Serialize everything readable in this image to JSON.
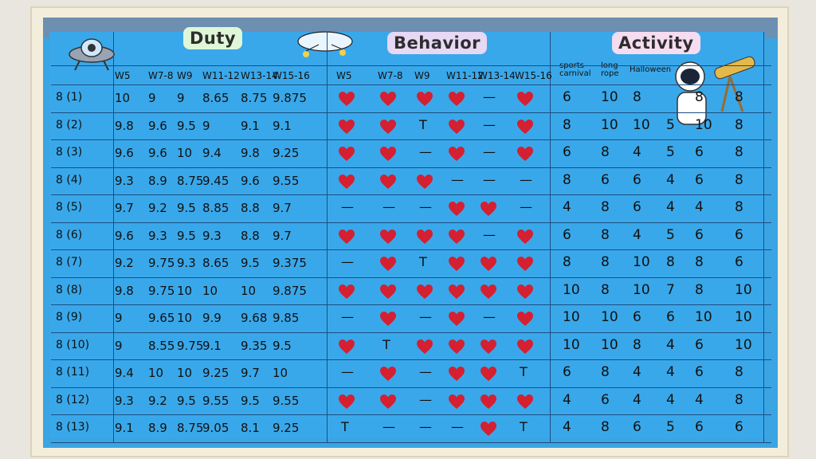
{
  "board": {
    "titles": {
      "duty": "Duty",
      "behavior": "Behavior",
      "activity": "Activity"
    },
    "weeks": [
      "W5",
      "W7-8",
      "W9",
      "W11-12",
      "W13-14",
      "W15-16"
    ],
    "behavior_weeks": [
      "W5",
      "W7-8",
      "W9",
      "W11-12",
      "W13-14",
      "W15-16"
    ],
    "activity_headers": [
      "sports carnival",
      "long rope",
      "Halloween"
    ],
    "classes": [
      "8 (1)",
      "8 (2)",
      "8 (3)",
      "8 (4)",
      "8 (5)",
      "8 (6)",
      "8 (7)",
      "8 (8)",
      "8 (9)",
      "8 (10)",
      "8 (11)",
      "8 (12)",
      "8 (13)"
    ],
    "duty": [
      [
        "10",
        "9",
        "9",
        "8.65",
        "8.75",
        "9.875"
      ],
      [
        "9.8",
        "9.6",
        "9.5",
        "9",
        "9.1",
        "9.1"
      ],
      [
        "9.6",
        "9.6",
        "10",
        "9.4",
        "9.8",
        "9.25"
      ],
      [
        "9.3",
        "8.9",
        "8.75",
        "9.45",
        "9.6",
        "9.55"
      ],
      [
        "9.7",
        "9.2",
        "9.5",
        "8.85",
        "8.8",
        "9.7"
      ],
      [
        "9.6",
        "9.3",
        "9.5",
        "9.3",
        "8.8",
        "9.7"
      ],
      [
        "9.2",
        "9.75",
        "9.3",
        "8.65",
        "9.5",
        "9.375"
      ],
      [
        "9.8",
        "9.75",
        "10",
        "10",
        "10",
        "9.875"
      ],
      [
        "9",
        "9.65",
        "10",
        "9.9",
        "9.68",
        "9.85"
      ],
      [
        "9",
        "8.55",
        "9.75",
        "9.1",
        "9.35",
        "9.5"
      ],
      [
        "9.4",
        "10",
        "10",
        "9.25",
        "9.7",
        "10"
      ],
      [
        "9.3",
        "9.2",
        "9.5",
        "9.55",
        "9.5",
        "9.55"
      ],
      [
        "9.1",
        "8.9",
        "8.75",
        "9.05",
        "8.1",
        "9.25"
      ]
    ],
    "behavior": [
      [
        "heart",
        "heart",
        "heart",
        "heart",
        "—",
        "heart"
      ],
      [
        "heart",
        "heart",
        "T",
        "heart",
        "—",
        "heart"
      ],
      [
        "heart",
        "heart",
        "—",
        "heart",
        "—",
        "heart"
      ],
      [
        "heart",
        "heart",
        "heart",
        "—",
        "—",
        "—"
      ],
      [
        "—",
        "—",
        "—",
        "heart",
        "heart",
        "—"
      ],
      [
        "heart",
        "heart",
        "heart",
        "heart",
        "—",
        "heart"
      ],
      [
        "—",
        "heart",
        "T",
        "heart",
        "heart",
        "heart"
      ],
      [
        "heart",
        "heart",
        "heart",
        "heart",
        "heart",
        "heart"
      ],
      [
        "—",
        "heart",
        "—",
        "heart",
        "—",
        "heart"
      ],
      [
        "heart",
        "T",
        "heart",
        "heart",
        "heart",
        "heart"
      ],
      [
        "—",
        "heart",
        "—",
        "heart",
        "heart",
        "T"
      ],
      [
        "heart",
        "heart",
        "—",
        "heart",
        "heart",
        "heart"
      ],
      [
        "T",
        "—",
        "—",
        "—",
        "heart",
        "T"
      ]
    ],
    "activity": [
      [
        "6",
        "10",
        "8",
        "",
        "8",
        "8"
      ],
      [
        "8",
        "10",
        "10",
        "5",
        "10",
        "8"
      ],
      [
        "6",
        "8",
        "4",
        "5",
        "6",
        "8"
      ],
      [
        "8",
        "6",
        "6",
        "4",
        "6",
        "8"
      ],
      [
        "4",
        "8",
        "6",
        "4",
        "4",
        "8"
      ],
      [
        "6",
        "8",
        "4",
        "5",
        "6",
        "6"
      ],
      [
        "8",
        "8",
        "10",
        "8",
        "8",
        "6"
      ],
      [
        "10",
        "8",
        "10",
        "7",
        "8",
        "10"
      ],
      [
        "10",
        "10",
        "6",
        "6",
        "10",
        "10"
      ],
      [
        "10",
        "10",
        "8",
        "4",
        "6",
        "10"
      ],
      [
        "6",
        "8",
        "4",
        "4",
        "6",
        "8"
      ],
      [
        "4",
        "6",
        "4",
        "4",
        "4",
        "8"
      ],
      [
        "4",
        "8",
        "6",
        "5",
        "6",
        "6"
      ]
    ]
  },
  "colors": {
    "board": "#3ba4e3",
    "heart": "#d42031",
    "line": "#1c4e82"
  }
}
